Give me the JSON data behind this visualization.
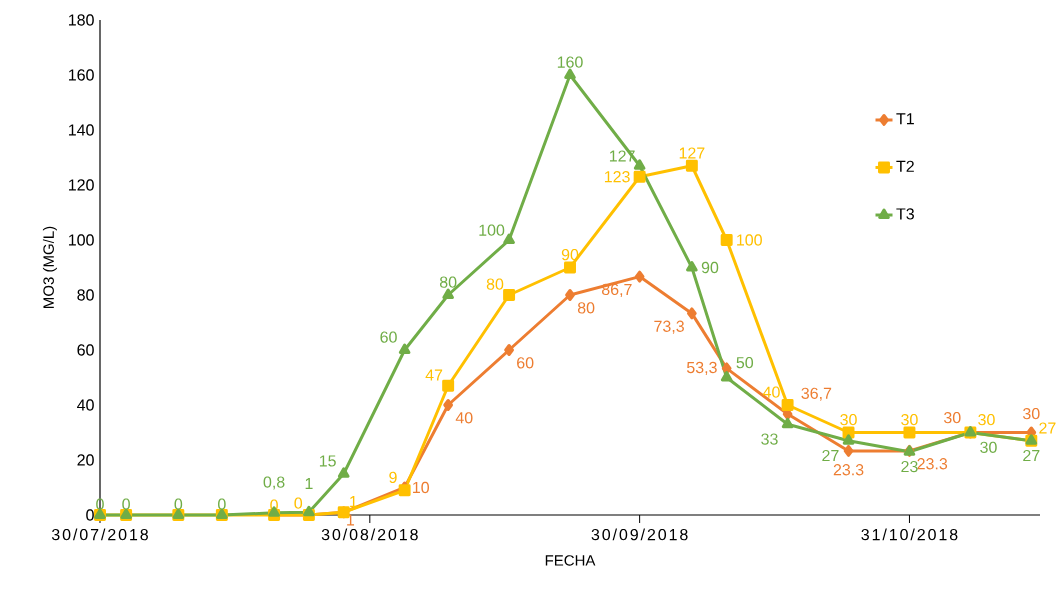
{
  "chart_data": {
    "type": "line",
    "xlabel": "FECHA",
    "ylabel": "MO3 (MG/L)",
    "x": [
      "2018-07-30",
      "2018-08-02",
      "2018-08-08",
      "2018-08-13",
      "2018-08-19",
      "2018-08-23",
      "2018-08-27",
      "2018-09-03",
      "2018-09-08",
      "2018-09-15",
      "2018-09-22",
      "2018-09-30",
      "2018-10-06",
      "2018-10-10",
      "2018-10-17",
      "2018-10-24",
      "2018-10-31",
      "2018-11-07",
      "2018-11-14"
    ],
    "series": [
      {
        "name": "T1",
        "color": "#ed7d31",
        "marker": "diamond",
        "values": [
          null,
          null,
          null,
          null,
          0,
          0,
          1,
          10,
          40,
          60,
          80,
          86.7,
          73.3,
          53.3,
          36.7,
          23.3,
          23.3,
          30,
          30
        ],
        "value_labels": [
          null,
          null,
          null,
          null,
          null,
          null,
          "1",
          "10",
          "40",
          "60",
          "80",
          "86,7",
          "73,3",
          "53,3",
          "36,7",
          "23.3",
          "23.3",
          "30",
          "30"
        ]
      },
      {
        "name": "T2",
        "color": "#ffc000",
        "marker": "square",
        "values": [
          0,
          0,
          0,
          0,
          0,
          0,
          1,
          9,
          47,
          80,
          90,
          123,
          127,
          100,
          40,
          30,
          30,
          30,
          27
        ],
        "value_labels": [
          null,
          null,
          null,
          null,
          "0",
          "0",
          "1",
          "9",
          "47",
          "80",
          "90",
          "123",
          "127",
          "100",
          "40",
          "30",
          "30",
          "30",
          "27"
        ]
      },
      {
        "name": "T3",
        "color": "#70ad47",
        "marker": "triangle",
        "values": [
          0,
          0,
          0,
          0,
          0.8,
          1,
          15,
          60,
          80,
          100,
          160,
          127,
          90,
          50,
          33,
          27,
          23,
          30,
          27
        ],
        "value_labels": [
          "0",
          "0",
          "0",
          "0",
          "0,8",
          "1",
          "15",
          "60",
          "80",
          "100",
          "160",
          "127",
          "90",
          "50",
          "33",
          "27",
          "23",
          "30",
          "27"
        ]
      }
    ],
    "xlim": [
      "2018-07-30",
      "2018-11-15"
    ],
    "xticks": [
      {
        "value": "2018-07-30",
        "label": "30/07/2018"
      },
      {
        "value": "2018-08-30",
        "label": "30/08/2018"
      },
      {
        "value": "2018-09-30",
        "label": "30/09/2018"
      },
      {
        "value": "2018-10-31",
        "label": "31/10/2018"
      }
    ],
    "ylim": [
      0,
      180
    ],
    "yticks": [
      0,
      20,
      40,
      60,
      80,
      100,
      120,
      140,
      160,
      180
    ],
    "legend": "right",
    "grid": false
  }
}
